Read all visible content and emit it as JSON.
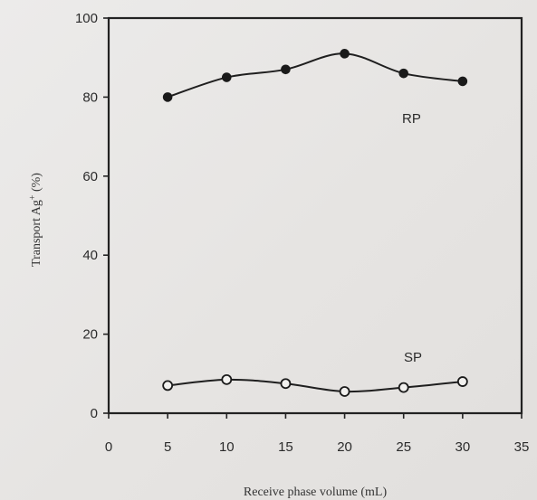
{
  "chart_data": {
    "type": "line",
    "xlabel": "Receive phase volume (mL)",
    "ylabel_main": "Transport Ag",
    "ylabel_sup": "+",
    "ylabel_unit": " (%)",
    "xlim": [
      0,
      35
    ],
    "ylim": [
      0,
      100
    ],
    "x_ticks": [
      0,
      5,
      10,
      15,
      20,
      25,
      30,
      35
    ],
    "y_ticks": [
      0,
      20,
      40,
      60,
      80,
      100
    ],
    "grid": false,
    "series": [
      {
        "name": "RP",
        "marker": "filled-circle",
        "x": [
          5,
          10,
          15,
          20,
          25,
          30
        ],
        "y": [
          80,
          85,
          87,
          91,
          86,
          84
        ]
      },
      {
        "name": "SP",
        "marker": "open-circle",
        "x": [
          5,
          10,
          15,
          20,
          25,
          30
        ],
        "y": [
          7,
          8.5,
          7.5,
          5.5,
          6.5,
          8
        ]
      }
    ]
  }
}
